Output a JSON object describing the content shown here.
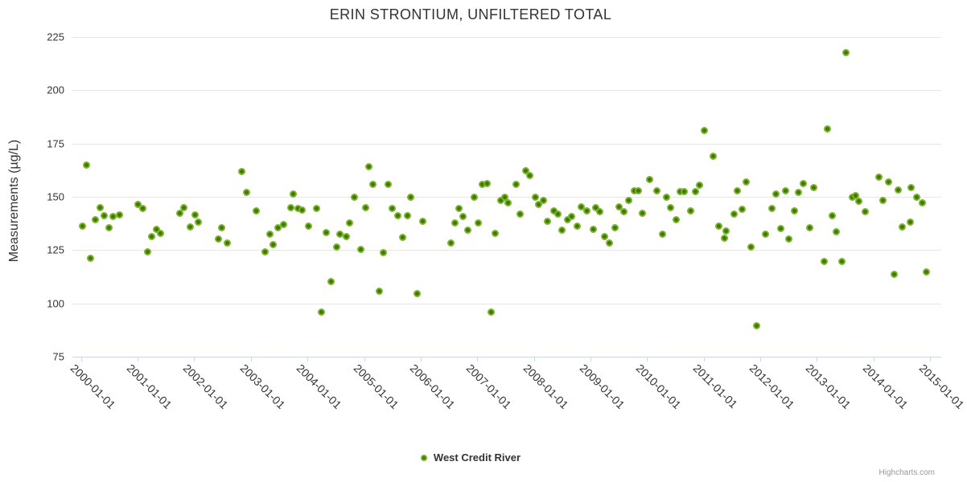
{
  "header": {
    "title": "ERIN STRONTIUM, UNFILTERED TOTAL"
  },
  "legend": {
    "label": "West Credit River"
  },
  "credits": {
    "label": "Highcharts.com"
  },
  "colors": {
    "point_ring": "#7db32c",
    "point_core": "#3d7a05",
    "gridline": "#e6e6e6",
    "axis": "#ccd6eb",
    "text": "#333333",
    "credits_text": "#999999"
  },
  "chart_data": {
    "type": "scatter",
    "title": "ERIN STRONTIUM, UNFILTERED TOTAL",
    "xlabel": "",
    "ylabel": "Measurements (µg/L)",
    "grid": "horizontal",
    "legend_position": "bottom-center",
    "xlim": [
      1999.848,
      2015.196
    ],
    "ylim": [
      75,
      225
    ],
    "y_ticks": [
      225,
      200,
      175,
      150,
      125,
      100,
      75
    ],
    "x_ticks": [
      {
        "year": 2000,
        "label": "2000-01-01"
      },
      {
        "year": 2001,
        "label": "2001-01-01"
      },
      {
        "year": 2002,
        "label": "2002-01-01"
      },
      {
        "year": 2003,
        "label": "2003-01-01"
      },
      {
        "year": 2004,
        "label": "2004-01-01"
      },
      {
        "year": 2005,
        "label": "2005-01-01"
      },
      {
        "year": 2006,
        "label": "2006-01-01"
      },
      {
        "year": 2007,
        "label": "2007-01-01"
      },
      {
        "year": 2008,
        "label": "2008-01-01"
      },
      {
        "year": 2009,
        "label": "2009-01-01"
      },
      {
        "year": 2010,
        "label": "2010-01-01"
      },
      {
        "year": 2011,
        "label": "2011-01-01"
      },
      {
        "year": 2012,
        "label": "2012-01-01"
      },
      {
        "year": 2013,
        "label": "2013-01-01"
      },
      {
        "year": 2014,
        "label": "2014-01-01"
      },
      {
        "year": 2015,
        "label": "2015-01-01"
      }
    ],
    "series": [
      {
        "name": "West Credit River",
        "x_unit": "decimal_year",
        "y_unit": "µg/L",
        "points": [
          [
            2000.02,
            136.4
          ],
          [
            2000.1,
            164.9
          ],
          [
            2000.17,
            121.2
          ],
          [
            2000.25,
            139.4
          ],
          [
            2000.34,
            145.0
          ],
          [
            2000.41,
            141.3
          ],
          [
            2000.49,
            135.5
          ],
          [
            2000.56,
            140.6
          ],
          [
            2000.68,
            141.7
          ],
          [
            2001.0,
            146.3
          ],
          [
            2001.09,
            144.4
          ],
          [
            2001.17,
            124.3
          ],
          [
            2001.25,
            131.2
          ],
          [
            2001.33,
            134.6
          ],
          [
            2001.41,
            133.0
          ],
          [
            2001.75,
            142.3
          ],
          [
            2001.82,
            145.0
          ],
          [
            2001.93,
            135.8
          ],
          [
            2002.02,
            141.4
          ],
          [
            2002.07,
            138.3
          ],
          [
            2002.43,
            130.3
          ],
          [
            2002.49,
            135.5
          ],
          [
            2002.58,
            128.3
          ],
          [
            2002.84,
            161.9
          ],
          [
            2002.92,
            152.2
          ],
          [
            2003.09,
            143.3
          ],
          [
            2003.25,
            124.3
          ],
          [
            2003.34,
            132.6
          ],
          [
            2003.4,
            127.4
          ],
          [
            2003.48,
            135.5
          ],
          [
            2003.58,
            136.9
          ],
          [
            2003.71,
            145.0
          ],
          [
            2003.75,
            151.3
          ],
          [
            2003.84,
            144.4
          ],
          [
            2003.91,
            143.9
          ],
          [
            2004.02,
            136.1
          ],
          [
            2004.16,
            144.4
          ],
          [
            2004.25,
            96.0
          ],
          [
            2004.33,
            133.2
          ],
          [
            2004.41,
            110.3
          ],
          [
            2004.51,
            126.5
          ],
          [
            2004.58,
            132.6
          ],
          [
            2004.68,
            131.3
          ],
          [
            2004.74,
            137.6
          ],
          [
            2004.83,
            150.0
          ],
          [
            2004.94,
            125.5
          ],
          [
            2005.03,
            145.0
          ],
          [
            2005.09,
            164.2
          ],
          [
            2005.16,
            155.9
          ],
          [
            2005.27,
            105.7
          ],
          [
            2005.34,
            123.7
          ],
          [
            2005.42,
            155.9
          ],
          [
            2005.5,
            144.5
          ],
          [
            2005.59,
            141.3
          ],
          [
            2005.68,
            131.1
          ],
          [
            2005.77,
            141.3
          ],
          [
            2005.83,
            150.0
          ],
          [
            2005.94,
            104.5
          ],
          [
            2006.03,
            138.6
          ],
          [
            2006.53,
            128.4
          ],
          [
            2006.6,
            137.6
          ],
          [
            2006.68,
            144.4
          ],
          [
            2006.75,
            140.7
          ],
          [
            2006.83,
            134.4
          ],
          [
            2006.94,
            150.0
          ],
          [
            2007.02,
            137.7
          ],
          [
            2007.09,
            155.9
          ],
          [
            2007.18,
            156.4
          ],
          [
            2007.25,
            96.0
          ],
          [
            2007.31,
            132.7
          ],
          [
            2007.42,
            148.3
          ],
          [
            2007.49,
            150.0
          ],
          [
            2007.55,
            147.3
          ],
          [
            2007.68,
            155.9
          ],
          [
            2007.75,
            142.0
          ],
          [
            2007.85,
            162.1
          ],
          [
            2007.92,
            159.9
          ],
          [
            2008.02,
            150.0
          ],
          [
            2008.08,
            146.3
          ],
          [
            2008.17,
            148.3
          ],
          [
            2008.24,
            138.4
          ],
          [
            2008.36,
            143.5
          ],
          [
            2008.42,
            142.0
          ],
          [
            2008.5,
            134.4
          ],
          [
            2008.6,
            139.2
          ],
          [
            2008.67,
            140.8
          ],
          [
            2008.77,
            136.2
          ],
          [
            2008.84,
            145.2
          ],
          [
            2008.93,
            143.3
          ],
          [
            2009.05,
            134.6
          ],
          [
            2009.09,
            144.8
          ],
          [
            2009.17,
            143.2
          ],
          [
            2009.25,
            131.2
          ],
          [
            2009.34,
            128.2
          ],
          [
            2009.43,
            135.4
          ],
          [
            2009.5,
            145.2
          ],
          [
            2009.59,
            143.0
          ],
          [
            2009.67,
            148.3
          ],
          [
            2009.77,
            153.0
          ],
          [
            2009.84,
            152.9
          ],
          [
            2009.92,
            142.4
          ],
          [
            2010.04,
            158.2
          ],
          [
            2010.17,
            152.9
          ],
          [
            2010.27,
            132.3
          ],
          [
            2010.34,
            150.0
          ],
          [
            2010.42,
            145.0
          ],
          [
            2010.52,
            139.3
          ],
          [
            2010.59,
            152.5
          ],
          [
            2010.66,
            152.5
          ],
          [
            2010.77,
            143.3
          ],
          [
            2010.85,
            152.5
          ],
          [
            2010.92,
            155.3
          ],
          [
            2011.01,
            181.0
          ],
          [
            2011.17,
            169.2
          ],
          [
            2011.26,
            136.2
          ],
          [
            2011.36,
            130.7
          ],
          [
            2011.4,
            133.8
          ],
          [
            2011.53,
            142.0
          ],
          [
            2011.59,
            152.9
          ],
          [
            2011.68,
            144.3
          ],
          [
            2011.75,
            157.0
          ],
          [
            2011.84,
            126.4
          ],
          [
            2011.93,
            89.6
          ],
          [
            2012.09,
            132.3
          ],
          [
            2012.2,
            144.4
          ],
          [
            2012.27,
            151.4
          ],
          [
            2012.36,
            135.3
          ],
          [
            2012.44,
            152.9
          ],
          [
            2012.51,
            130.4
          ],
          [
            2012.6,
            143.5
          ],
          [
            2012.68,
            152.2
          ],
          [
            2012.76,
            156.1
          ],
          [
            2012.87,
            135.4
          ],
          [
            2012.94,
            154.2
          ],
          [
            2013.13,
            119.6
          ],
          [
            2013.18,
            182.0
          ],
          [
            2013.27,
            141.3
          ],
          [
            2013.34,
            133.6
          ],
          [
            2013.44,
            119.6
          ],
          [
            2013.51,
            217.5
          ],
          [
            2013.62,
            149.8
          ],
          [
            2013.68,
            150.4
          ],
          [
            2013.74,
            147.9
          ],
          [
            2013.85,
            143.2
          ],
          [
            2014.1,
            159.2
          ],
          [
            2014.17,
            148.3
          ],
          [
            2014.26,
            156.9
          ],
          [
            2014.37,
            113.7
          ],
          [
            2014.43,
            153.1
          ],
          [
            2014.51,
            135.8
          ],
          [
            2014.65,
            138.1
          ],
          [
            2014.67,
            154.4
          ],
          [
            2014.76,
            149.8
          ],
          [
            2014.86,
            147.3
          ],
          [
            2014.93,
            114.9
          ]
        ]
      }
    ]
  }
}
